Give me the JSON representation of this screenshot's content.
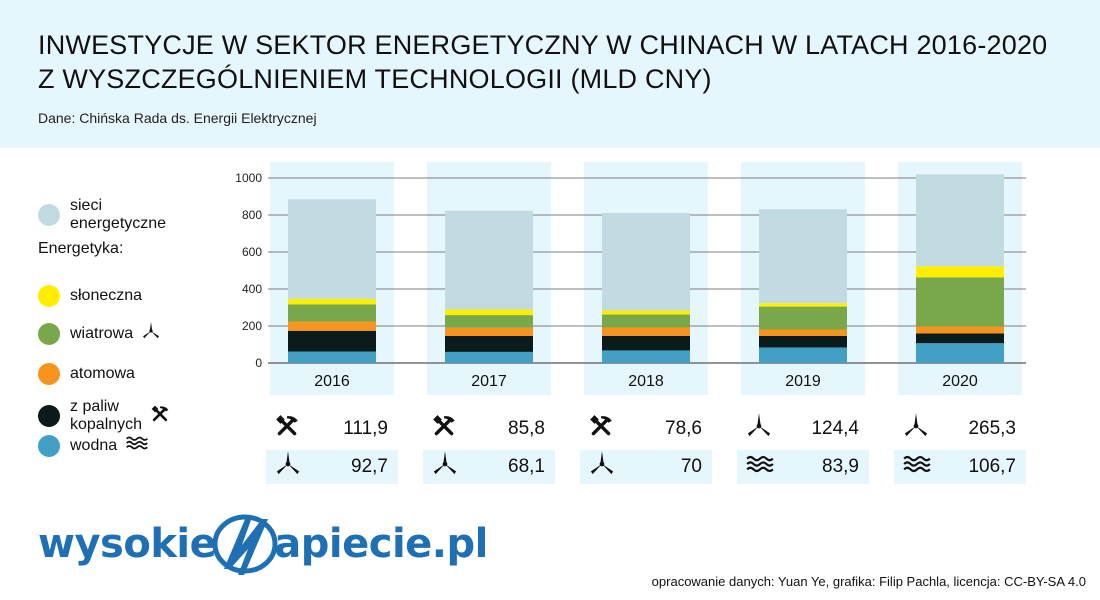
{
  "title_line1": "INWESTYCJE W SEKTOR ENERGETYCZNY W CHINACH W LATACH 2016-2020",
  "title_line2": "Z WYSZCZEGÓLNIENIEM TECHNOLOGII (MLD CNY)",
  "source": "Dane: Chińska Rada ds. Energii Elektrycznej",
  "legend": {
    "grid": "sieci energetyczne",
    "heading": "Energetyka:",
    "solar": "słoneczna",
    "wind": "wiatrowa",
    "nuclear": "atomowa",
    "fossil": "z paliw kopalnych",
    "hydro": "wodna"
  },
  "colors": {
    "grid": "#c2dbe2",
    "solar": "#ffee00",
    "wind": "#79a84a",
    "nuclear": "#f7941d",
    "fossil": "#0b1a1a",
    "hydro": "#41a0c4",
    "column_bg": "#e6f6fd"
  },
  "chart_data": {
    "type": "bar",
    "stacked": true,
    "categories": [
      "2016",
      "2017",
      "2018",
      "2019",
      "2020"
    ],
    "series": [
      {
        "name": "wodna",
        "values": [
          62,
          60,
          68,
          84,
          107
        ]
      },
      {
        "name": "z paliw kopalnych",
        "values": [
          112,
          86,
          79,
          62,
          53
        ]
      },
      {
        "name": "atomowa",
        "values": [
          50,
          45,
          45,
          35,
          38
        ]
      },
      {
        "name": "wiatrowa",
        "values": [
          93,
          68,
          70,
          124,
          265
        ]
      },
      {
        "name": "słoneczna",
        "values": [
          30,
          30,
          22,
          18,
          60
        ]
      },
      {
        "name": "sieci energetyczne",
        "values": [
          538,
          534,
          527,
          508,
          497
        ]
      }
    ],
    "yticks": [
      0,
      200,
      400,
      600,
      800,
      1000
    ],
    "ylim": [
      0,
      1000
    ],
    "grid": true
  },
  "table": [
    {
      "year": "2016",
      "top_icon": "hammer-pick-icon",
      "top_value": "111,9",
      "bottom_icon": "wind-turbine-icon",
      "bottom_value": "92,7"
    },
    {
      "year": "2017",
      "top_icon": "hammer-pick-icon",
      "top_value": "85,8",
      "bottom_icon": "wind-turbine-icon",
      "bottom_value": "68,1"
    },
    {
      "year": "2018",
      "top_icon": "hammer-pick-icon",
      "top_value": "78,6",
      "bottom_icon": "wind-turbine-icon",
      "bottom_value": "70"
    },
    {
      "year": "2019",
      "top_icon": "wind-turbine-icon",
      "top_value": "124,4",
      "bottom_icon": "waves-icon",
      "bottom_value": "83,9"
    },
    {
      "year": "2020",
      "top_icon": "wind-turbine-icon",
      "top_value": "265,3",
      "bottom_icon": "waves-icon",
      "bottom_value": "106,7"
    }
  ],
  "logo": {
    "left": "wysokie",
    "right": "apiecie.pl"
  },
  "credits": "opracowanie danych: Yuan Ye, grafika: Filip Pachla, licencja: CC-BY-SA 4.0"
}
